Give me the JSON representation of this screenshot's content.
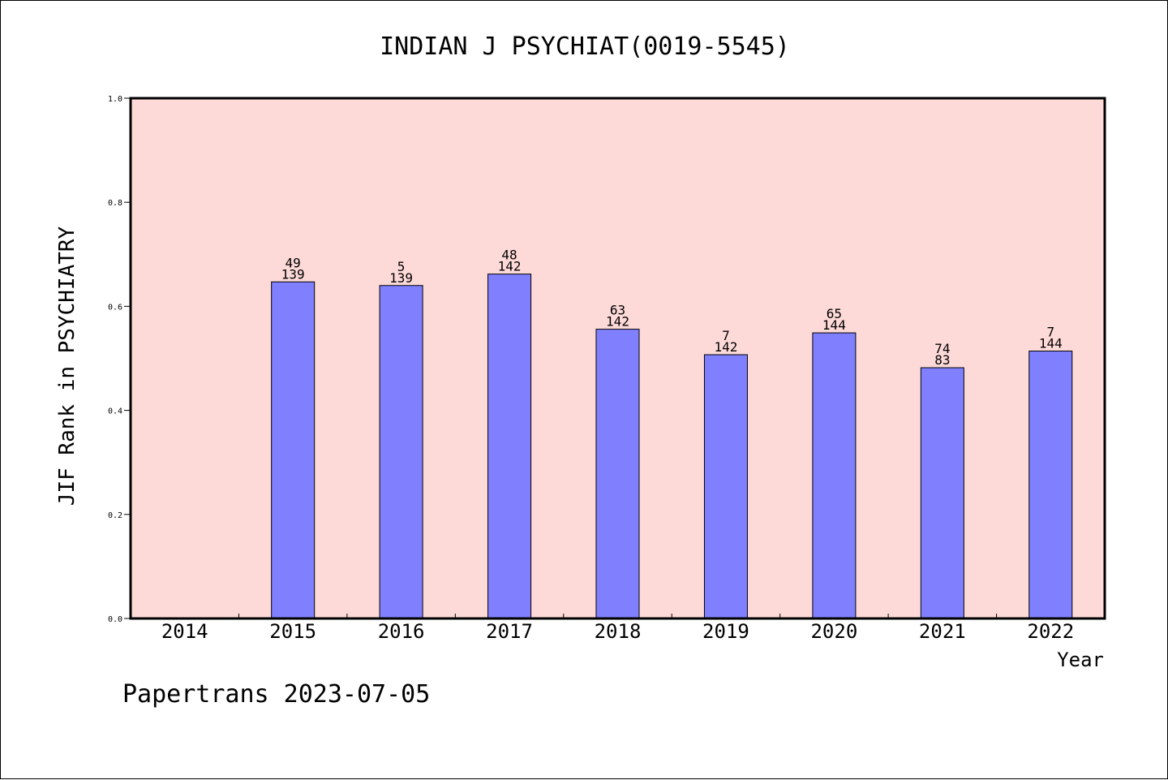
{
  "chart_data": {
    "type": "bar",
    "title": "INDIAN J PSYCHIAT(0019-5545)",
    "xlabel": "Year",
    "ylabel": "JIF Rank in PSYCHIATRY",
    "categories": [
      "2014",
      "2015",
      "2016",
      "2017",
      "2018",
      "2019",
      "2020",
      "2021",
      "2022"
    ],
    "values": [
      null,
      0.647,
      0.64,
      0.662,
      0.556,
      0.507,
      0.549,
      0.482,
      0.514
    ],
    "rank_labels": [
      null,
      "49",
      "5",
      "48",
      "63",
      "7",
      "65",
      "74",
      "7"
    ],
    "total_labels": [
      null,
      "139",
      "139",
      "142",
      "142",
      "142",
      "144",
      "83",
      "144"
    ],
    "ylim": [
      0,
      1.0
    ],
    "yticks": [
      "0.0",
      "0.2",
      "0.4",
      "0.6",
      "0.8",
      "1.0"
    ],
    "grid": false,
    "colors": {
      "plot_background": "#FDDAD8",
      "bar_fill": "#8080FF",
      "bar_stroke": "#000000"
    }
  },
  "footer": {
    "text": "Papertrans 2023-07-05"
  }
}
